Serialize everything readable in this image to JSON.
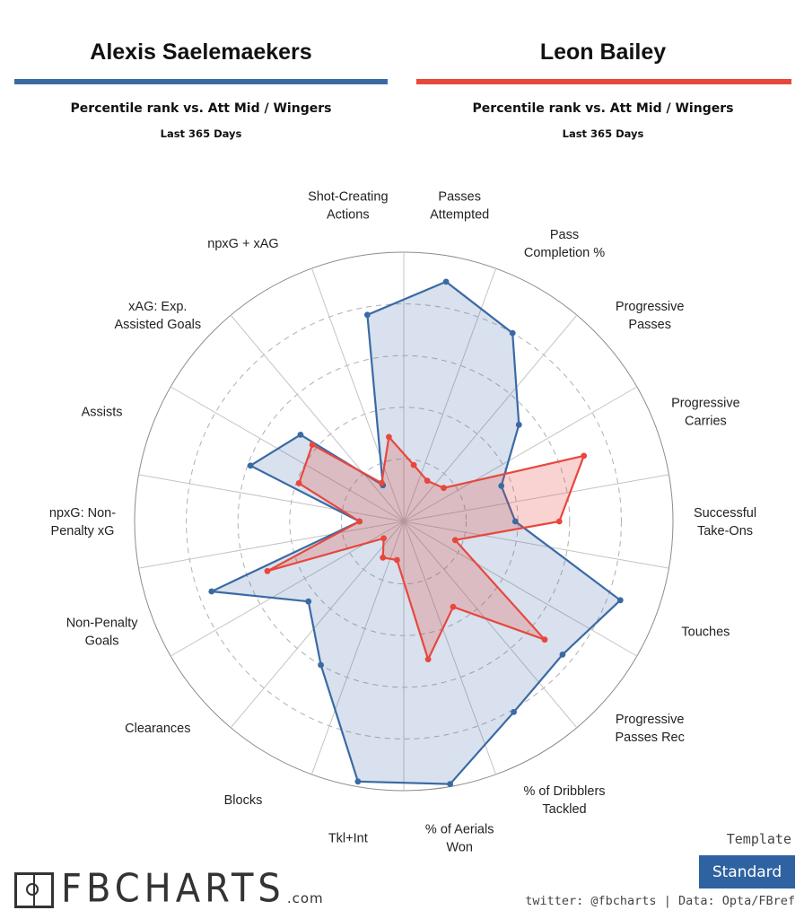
{
  "header": {
    "left": {
      "player": "Alexis Saelemaekers",
      "subtitle": "Percentile rank vs. Att Mid / Wingers",
      "period": "Last 365 Days",
      "color": "#3a6aa4"
    },
    "right": {
      "player": "Leon Bailey",
      "subtitle": "Percentile rank vs. Att Mid / Wingers",
      "period": "Last 365 Days",
      "color": "#e8473d"
    }
  },
  "chart_data": {
    "type": "radar",
    "range": [
      0,
      100
    ],
    "grid": true,
    "categories": [
      "Passes\nAttempted",
      "Pass\nCompletion %",
      "Progressive\nPasses",
      "Progressive\nCarries",
      "Successful\nTake-Ons",
      "Touches",
      "Progressive\nPasses Rec",
      "% of Dribblers\nTackled",
      "% of Aerials\nWon",
      "Tkl+Int",
      "Blocks",
      "Clearances",
      "Non-Penalty\nGoals",
      "npxG: Non-\nPenalty xG",
      "Assists",
      "xAG: Exp.\nAssisted Goals",
      "npxG + xAG",
      "Shot-Creating\nActions"
    ],
    "series": [
      {
        "name": "Alexis Saelemaekers",
        "color": "#3a6aa4",
        "fill": "rgba(58,106,164,0.2)",
        "values": [
          90,
          80,
          54,
          36,
          39,
          85,
          76,
          81,
          99,
          98,
          60,
          44,
          75,
          13,
          59,
          48,
          12,
          77
        ]
      },
      {
        "name": "Leon Bailey",
        "color": "#e8473d",
        "fill": "rgba(232,71,61,0.24)",
        "values": [
          18,
          14,
          16,
          70,
          56,
          17,
          67,
          34,
          50,
          11,
          12,
          6,
          52,
          13,
          39,
          42,
          13,
          29
        ]
      }
    ]
  },
  "footer": {
    "logo_text": "FBCHARTS",
    "logo_suffix": ".com",
    "template_label": "Template",
    "template_value": "Standard",
    "credit": "twitter: @fbcharts | Data: Opta/FBref"
  }
}
